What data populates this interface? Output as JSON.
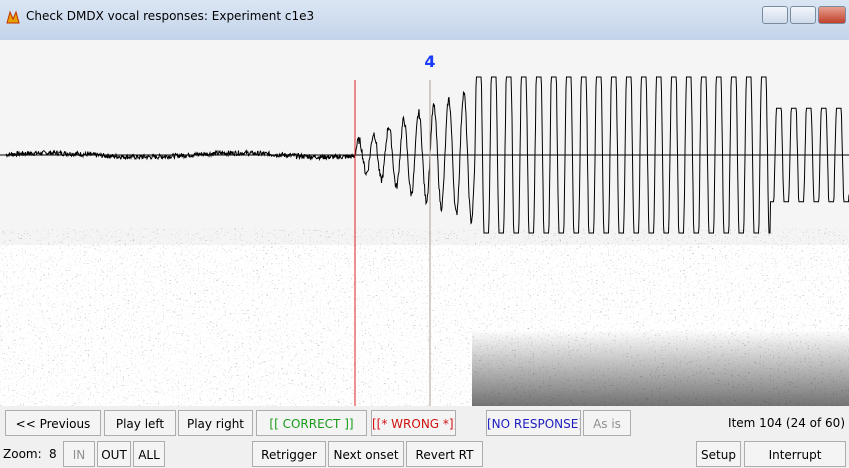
{
  "window": {
    "title": "Check DMDX vocal responses: Experiment c1e3"
  },
  "marker": {
    "label": "4"
  },
  "buttons": [
    "<< Previous",
    "Play left",
    "Play right",
    "[[ CORRECT ]]",
    "[[* WRONG *]]",
    "[NO RESPONSE]",
    "As is"
  ],
  "status": "Item 104 (24 of 60)",
  "zoom": {
    "label": "Zoom:",
    "value": "8",
    "buttons": [
      "IN",
      "OUT",
      "ALL"
    ]
  },
  "toolbar": [
    "Retrigger",
    "Next onset",
    "Revert RT"
  ],
  "right_buttons": [
    "Setup",
    "Interrupt"
  ]
}
